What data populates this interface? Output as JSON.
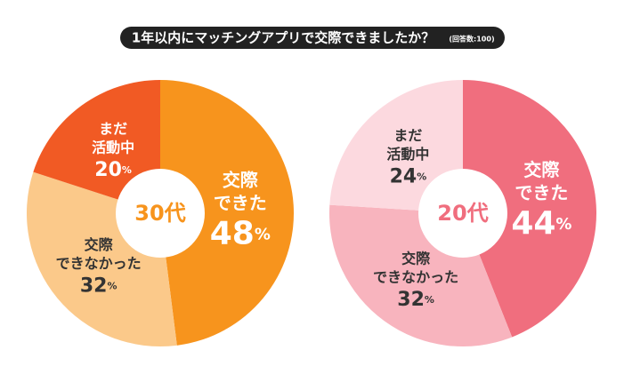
{
  "title": "1年以内にマッチングアプリで交際できましたか？",
  "subtitle": "(回答数:100)",
  "chart_data": [
    {
      "type": "pie",
      "title": "30代",
      "title_color": "#f7941d",
      "categories": [
        "交際\nできた",
        "交際\nできなかった",
        "まだ\n活動中"
      ],
      "values": [
        48,
        32,
        20
      ],
      "value_labels": [
        "48%",
        "32%",
        "20%"
      ],
      "colors": [
        "#f7941d",
        "#fbc98a",
        "#f15a24"
      ],
      "label_colors": [
        "#ffffff",
        "#333333",
        "#ffffff"
      ]
    },
    {
      "type": "pie",
      "title": "20代",
      "title_color": "#f06e7e",
      "categories": [
        "交際\nできた",
        "交際\nできなかった",
        "まだ\n活動中"
      ],
      "values": [
        44,
        32,
        24
      ],
      "value_labels": [
        "44%",
        "32%",
        "24%"
      ],
      "colors": [
        "#f06e7e",
        "#f8b4be",
        "#fcd9df"
      ],
      "label_colors": [
        "#ffffff",
        "#333333",
        "#333333"
      ]
    }
  ]
}
